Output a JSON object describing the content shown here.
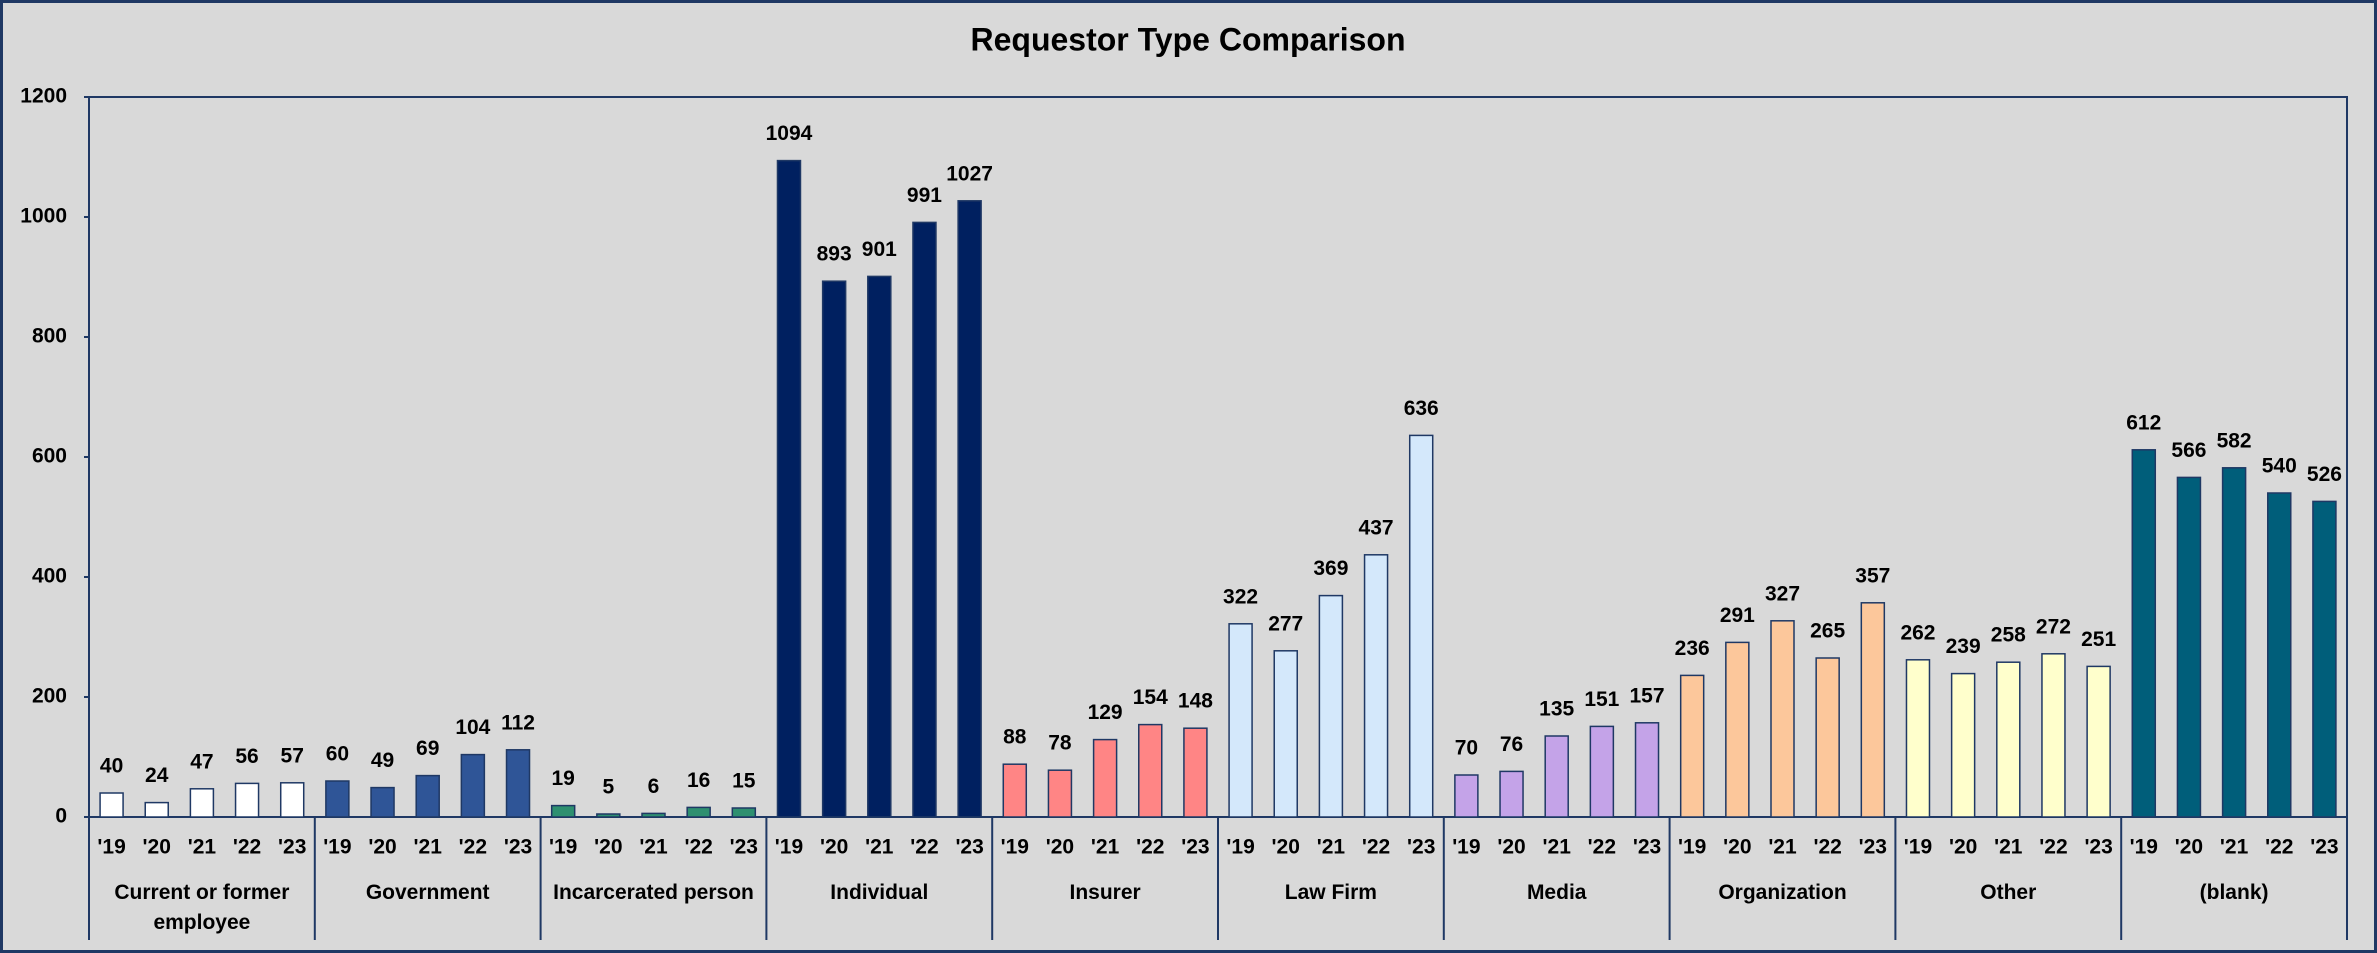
{
  "chart_data": {
    "type": "bar",
    "title": "Requestor Type Comparison",
    "years": [
      "'19",
      "'20",
      "'21",
      "'22",
      "'23"
    ],
    "groups": [
      {
        "name": "Current or former employee",
        "color": "#ffffff",
        "values": [
          40,
          24,
          47,
          56,
          57
        ]
      },
      {
        "name": "Government",
        "color": "#2f5597",
        "values": [
          60,
          49,
          69,
          104,
          112
        ]
      },
      {
        "name": "Incarcerated person",
        "color": "#2e9070",
        "values": [
          19,
          5,
          6,
          16,
          15
        ]
      },
      {
        "name": "Individual",
        "color": "#002060",
        "values": [
          1094,
          893,
          901,
          991,
          1027
        ]
      },
      {
        "name": "Insurer",
        "color": "#ff8585",
        "values": [
          88,
          78,
          129,
          154,
          148
        ]
      },
      {
        "name": "Law Firm",
        "color": "#d4e8fb",
        "values": [
          322,
          277,
          369,
          437,
          636
        ]
      },
      {
        "name": "Media",
        "color": "#c4a3e8",
        "values": [
          70,
          76,
          135,
          151,
          157
        ]
      },
      {
        "name": "Organization",
        "color": "#fcc79b",
        "values": [
          236,
          291,
          327,
          265,
          357
        ]
      },
      {
        "name": "Other",
        "color": "#ffffcc",
        "values": [
          262,
          239,
          258,
          272,
          251
        ]
      },
      {
        "name": "(blank)",
        "color": "#005e7a",
        "values": [
          612,
          566,
          582,
          540,
          526
        ]
      }
    ],
    "ylim": [
      0,
      1200
    ],
    "yticks": [
      0,
      200,
      400,
      600,
      800,
      1000,
      1200
    ],
    "grid": false
  }
}
